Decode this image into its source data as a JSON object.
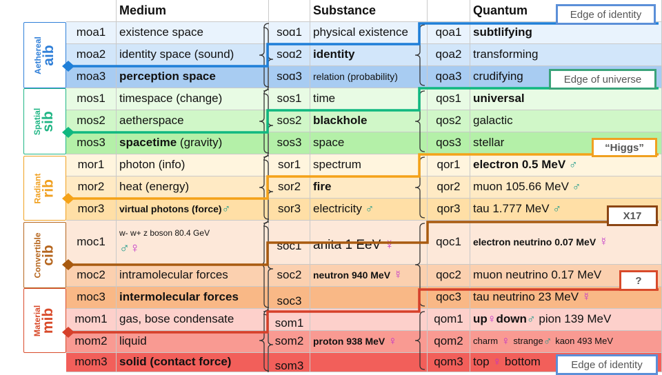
{
  "headers": {
    "medium": "Medium",
    "substance": "Substance",
    "quantum": "Quantum"
  },
  "groups": [
    {
      "name": "Aethereal",
      "code": "aib",
      "color": "#2f7fd8"
    },
    {
      "name": "Spatial",
      "code": "sib",
      "color": "#1fb584"
    },
    {
      "name": "Radiant",
      "code": "rib",
      "color": "#f0a020"
    },
    {
      "name": "Convertible",
      "code": "cib",
      "color": "#b5651d"
    },
    {
      "name": "Material",
      "code": "mib",
      "color": "#d84a2a"
    }
  ],
  "rows": [
    {
      "mcode": "moa1",
      "medium": "existence space",
      "scode": "soɑ1",
      "substance": "physical existence",
      "qcode": "qoa1",
      "quantum": "subtlifying",
      "color": "#e9f3fd"
    },
    {
      "mcode": "moa2",
      "medium": "identity space (sound)",
      "scode": "soɑ2",
      "substance": "identity",
      "qcode": "qoa2",
      "quantum": "transforming",
      "color": "#d2e6fa"
    },
    {
      "mcode": "moa3",
      "medium": "perception space",
      "scode": "soɑ3",
      "substance": "relation (probability)",
      "qcode": "qoa3",
      "quantum": "crudifying",
      "color": "#a8ccf2"
    },
    {
      "mcode": "mos1",
      "medium": "timespace (change)",
      "scode": "sos1",
      "substance": "time",
      "qcode": "qos1",
      "quantum": "universal",
      "color": "#e8fbe4"
    },
    {
      "mcode": "mos2",
      "medium": "aetherspace",
      "scode": "sos2",
      "substance": "blackhole",
      "qcode": "qos2",
      "quantum": "galactic",
      "color": "#d0f7c8"
    },
    {
      "mcode": "mos3",
      "medium": "spacetime",
      "medium_extra": "(gravity)",
      "scode": "sos3",
      "substance": "space",
      "qcode": "qos3",
      "quantum": "stellar",
      "color": "#b4f0a8"
    },
    {
      "mcode": "mor1",
      "medium": "photon (info)",
      "scode": "sor1",
      "substance": "spectrum",
      "qcode": "qor1",
      "quantum": "electron 0.5 MeV",
      "qsym": "♂",
      "color": "#fff5de"
    },
    {
      "mcode": "mor2",
      "medium": "heat (energy)",
      "scode": "sor2",
      "substance": "fire",
      "qcode": "qor2",
      "quantum": "muon 105.66 MeV",
      "qsym": "♂",
      "color": "#ffeac4"
    },
    {
      "mcode": "mor3",
      "medium": "virtual photons (force)",
      "msym": "♂",
      "scode": "sor3",
      "substance": "electricity",
      "ssym": "♂",
      "qcode": "qor3",
      "quantum": "tau 1.777 MeV",
      "qsym": "♂",
      "color": "#ffdfa6"
    },
    {
      "mcode": "moc1",
      "medium": "w- w+ z boson 80.4 GeV",
      "msym": "♂",
      "msym2": "♀",
      "scode": "soc1",
      "substance": "anita 1 EeV",
      "ssym": "☿",
      "qcode": "qoc1",
      "quantum": "electron neutrino 0.07 MeV",
      "qsym": "☿",
      "color": "#fde8d9"
    },
    {
      "mcode": "moc2",
      "medium": "intramolecular forces",
      "scode": "soc2",
      "substance": "neutron 940 MeV",
      "ssym": "☿",
      "qcode": "qoc2",
      "quantum": "muon neutrino 0.17 MeV",
      "color": "#fbd0af"
    },
    {
      "mcode": "moc3",
      "medium": "intermolecular forces",
      "scode": "soc3",
      "substance": "",
      "qcode": "qoc3",
      "quantum": "tau neutrino 23 MeV",
      "qsym": "☿",
      "color": "#f9b886"
    },
    {
      "mcode": "mom1",
      "medium": "gas, bose condensate",
      "scode": "som1",
      "substance": "",
      "qcode": "qom1",
      "quantum": "up",
      "q_female": "♀",
      "q_down": "down",
      "q_male": "♂",
      "q_pion": "pion 139 MeV",
      "color": "#fdd0cb"
    },
    {
      "mcode": "mom2",
      "medium": "liquid",
      "scode": "som2",
      "substance": "proton 938 MeV",
      "ssym": "♀",
      "qcode": "qom2",
      "quantum": "charm",
      "q_female": "♀",
      "q_strange": "strange",
      "q_male": "♂",
      "q_kaon": "kaon 493 MeV",
      "color": "#f99a92"
    },
    {
      "mcode": "mom3",
      "medium": "solid (contact force)",
      "scode": "som3",
      "substance": "",
      "qcode": "qom3",
      "quantum": "top",
      "q_female": "♀",
      "q_bottom": "bottom",
      "color": "#f25f5a"
    }
  ],
  "tags": [
    {
      "text": "Edge of identity",
      "color": "#5b8fd8"
    },
    {
      "text": "Edge of universe",
      "color": "#3aa37a"
    },
    {
      "text": "“Higgs”",
      "color": "#f0a020"
    },
    {
      "text": "X17",
      "color": "#8b4513"
    },
    {
      "text": "?",
      "color": "#d84a2a"
    },
    {
      "text": "Edge of identity",
      "color": "#5b8fd8"
    }
  ],
  "edges": [
    {
      "name": "aib",
      "color": "#1f7fd8"
    },
    {
      "name": "sib",
      "color": "#10b880"
    },
    {
      "name": "rib",
      "color": "#f4a218"
    },
    {
      "name": "cib",
      "color": "#a85a10"
    },
    {
      "name": "mib",
      "color": "#d6402a"
    }
  ]
}
